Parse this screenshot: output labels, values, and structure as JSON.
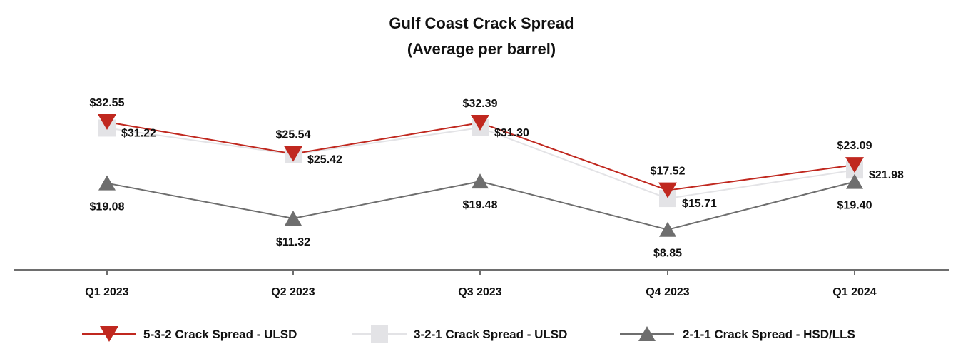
{
  "chart_data": {
    "type": "line",
    "title": "Gulf Coast Crack Spread",
    "subtitle": "(Average per barrel)",
    "categories": [
      "Q1 2023",
      "Q2 2023",
      "Q3 2023",
      "Q4 2023",
      "Q1 2024"
    ],
    "xlabel": "",
    "ylabel": "",
    "ylim": [
      0,
      42
    ],
    "grid": false,
    "legend": "bottom",
    "series": [
      {
        "name": "5-3-2 Crack Spread - ULSD",
        "values": [
          32.55,
          25.54,
          32.39,
          17.52,
          23.09
        ],
        "labels": [
          "$32.55",
          "$25.54",
          "$32.39",
          "$17.52",
          "$23.09"
        ],
        "color": "#C0281F",
        "marker": "triangle-down"
      },
      {
        "name": "3-2-1 Crack Spread - ULSD",
        "values": [
          31.22,
          25.42,
          31.3,
          15.71,
          21.98
        ],
        "labels": [
          "$31.22",
          "$25.42",
          "$31.30",
          "$15.71",
          "$21.98"
        ],
        "color": "#E3E3E6",
        "marker": "square"
      },
      {
        "name": "2-1-1 Crack Spread - HSD/LLS",
        "values": [
          19.08,
          11.32,
          19.48,
          8.85,
          19.4
        ],
        "labels": [
          "$19.08",
          "$11.32",
          "$19.48",
          "$8.85",
          "$19.40"
        ],
        "color": "#6E6E6E",
        "marker": "triangle-up"
      }
    ]
  }
}
